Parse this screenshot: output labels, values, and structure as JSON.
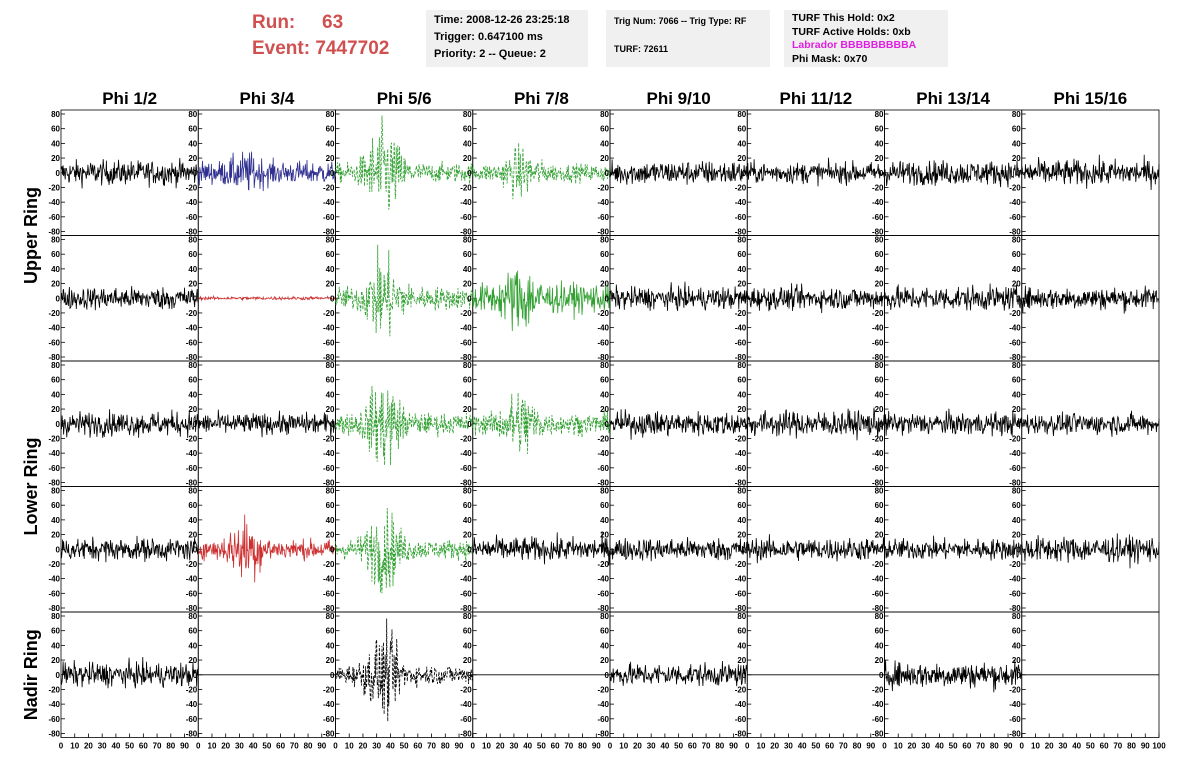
{
  "header": {
    "run_label": "Run:",
    "run_value": "63",
    "event_label": "Event:",
    "event_value": "7447702"
  },
  "info_boxes": {
    "time": "Time: 2008-12-26 23:25:18",
    "trigger": "Trigger: 0.647100 ms",
    "priority": "Priority: 2 -- Queue: 2",
    "trig_num": "Trig Num: 7066 -- Trig Type: RF",
    "turf": "TURF: 72611",
    "turf_this_hold": "TURF This Hold: 0x2",
    "turf_active_holds": "TURF Active Holds: 0xb",
    "labrador": "Labrador BBBBBBBBBA",
    "phi_mask": "Phi Mask: 0x70"
  },
  "chart_data": {
    "type": "line",
    "title": "",
    "columns": [
      "Phi 1/2",
      "Phi 3/4",
      "Phi 5/6",
      "Phi 7/8",
      "Phi 9/10",
      "Phi 11/12",
      "Phi 13/14",
      "Phi 15/16"
    ],
    "ring_labels": [
      "Upper Ring",
      "Lower Ring",
      "Nadir Ring"
    ],
    "ylim": [
      -80,
      80
    ],
    "xlim": [
      0,
      100
    ],
    "y_ticks": [
      "80",
      "60",
      "40",
      "20",
      "0",
      "-20",
      "-40",
      "-60",
      "-80"
    ],
    "x_ticks": [
      "0",
      "10",
      "20",
      "30",
      "40",
      "50",
      "60",
      "70",
      "80",
      "90",
      "100"
    ],
    "colors": {
      "black": "#000000",
      "blue": "#303090",
      "red": "#cc3030",
      "green": "#30a030"
    },
    "rows": [
      {
        "channels": [
          {
            "color": "black",
            "style": "solid",
            "amp": 15,
            "burst": 0
          },
          {
            "color": "blue",
            "style": "solid",
            "amp": 14,
            "burst": 0.9
          },
          {
            "color": "green",
            "style": "dashed",
            "amp": 12,
            "burst": 4.5
          },
          {
            "color": "green",
            "style": "dashed",
            "amp": 11,
            "burst": 2
          },
          {
            "color": "black",
            "style": "solid",
            "amp": 15,
            "burst": 0
          },
          {
            "color": "black",
            "style": "solid",
            "amp": 13,
            "burst": 0
          },
          {
            "color": "black",
            "style": "solid",
            "amp": 15,
            "burst": 0
          },
          {
            "color": "black",
            "style": "solid",
            "amp": 16,
            "burst": 0
          }
        ]
      },
      {
        "channels": [
          {
            "color": "black",
            "style": "solid",
            "amp": 14,
            "burst": 0
          },
          {
            "color": "red",
            "style": "solid",
            "amp": 2,
            "burst": 0
          },
          {
            "color": "green",
            "style": "dashed",
            "amp": 14,
            "burst": 3
          },
          {
            "color": "green",
            "style": "solid",
            "amp": 18,
            "burst": 1.5
          },
          {
            "color": "black",
            "style": "solid",
            "amp": 14,
            "burst": 0
          },
          {
            "color": "black",
            "style": "solid",
            "amp": 14,
            "burst": 0
          },
          {
            "color": "black",
            "style": "solid",
            "amp": 15,
            "burst": 0
          },
          {
            "color": "black",
            "style": "solid",
            "amp": 14,
            "burst": 0
          }
        ]
      },
      {
        "channels": [
          {
            "color": "black",
            "style": "solid",
            "amp": 15,
            "burst": 0
          },
          {
            "color": "black",
            "style": "solid",
            "amp": 13,
            "burst": 0
          },
          {
            "color": "green",
            "style": "dashed",
            "amp": 13,
            "burst": 3.5
          },
          {
            "color": "green",
            "style": "dashed",
            "amp": 13,
            "burst": 2.5
          },
          {
            "color": "black",
            "style": "solid",
            "amp": 15,
            "burst": 0
          },
          {
            "color": "black",
            "style": "solid",
            "amp": 16,
            "burst": 0
          },
          {
            "color": "black",
            "style": "solid",
            "amp": 14,
            "burst": 0
          },
          {
            "color": "black",
            "style": "solid",
            "amp": 13,
            "burst": 0
          }
        ]
      },
      {
        "channels": [
          {
            "color": "black",
            "style": "solid",
            "amp": 14,
            "burst": 0
          },
          {
            "color": "red",
            "style": "solid",
            "amp": 12,
            "burst": 2.5
          },
          {
            "color": "green",
            "style": "dashed",
            "amp": 12,
            "burst": 3.5
          },
          {
            "color": "black",
            "style": "solid",
            "amp": 15,
            "burst": 0
          },
          {
            "color": "black",
            "style": "solid",
            "amp": 14,
            "burst": 0
          },
          {
            "color": "black",
            "style": "solid",
            "amp": 14,
            "burst": 0
          },
          {
            "color": "black",
            "style": "solid",
            "amp": 13,
            "burst": 0
          },
          {
            "color": "black",
            "style": "solid",
            "amp": 16,
            "burst": 0
          }
        ]
      },
      {
        "channels": [
          {
            "color": "black",
            "style": "solid",
            "amp": 15,
            "burst": 0
          },
          {
            "color": "black",
            "style": "flat",
            "amp": 0,
            "burst": 0
          },
          {
            "color": "black",
            "style": "dashed",
            "amp": 12,
            "burst": 3.5
          },
          {
            "color": "black",
            "style": "flat",
            "amp": 0,
            "burst": 0
          },
          {
            "color": "black",
            "style": "solid",
            "amp": 14,
            "burst": 0
          },
          {
            "color": "black",
            "style": "flat",
            "amp": 0,
            "burst": 0
          },
          {
            "color": "black",
            "style": "solid",
            "amp": 16,
            "burst": 0
          },
          {
            "color": "black",
            "style": "flat",
            "amp": 0,
            "burst": 0
          }
        ]
      }
    ]
  }
}
